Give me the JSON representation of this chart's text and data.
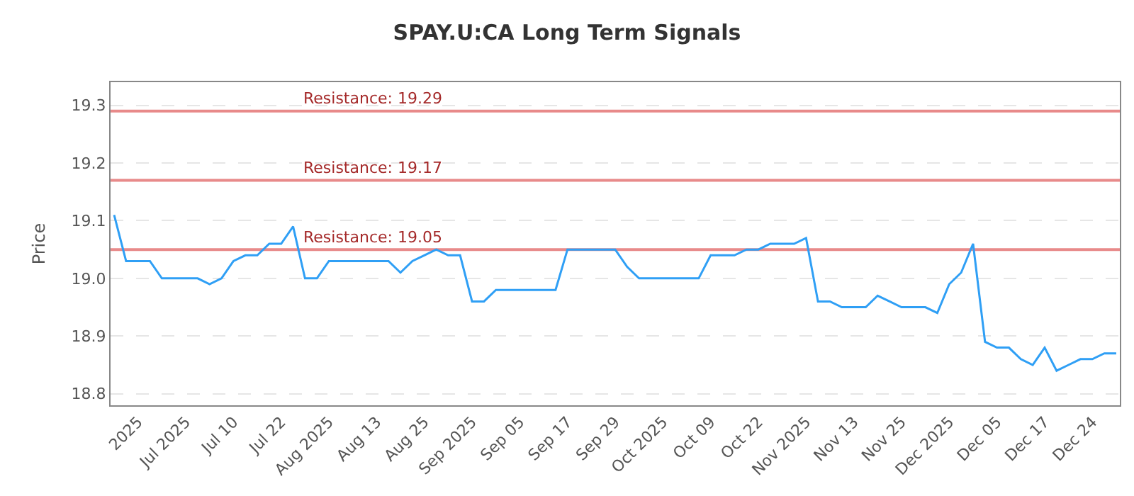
{
  "chart_data": {
    "type": "line",
    "title": "SPAY.U:CA Long Term Signals",
    "ylabel": "Price",
    "categories": [
      null,
      null,
      "2025",
      null,
      null,
      null,
      "Jul 2025",
      null,
      null,
      null,
      "Jul 10",
      null,
      null,
      null,
      "Jul 22",
      null,
      null,
      null,
      "Aug 2025",
      null,
      null,
      null,
      "Aug 13",
      null,
      null,
      null,
      "Aug 25",
      null,
      null,
      null,
      "Sep 2025",
      null,
      null,
      null,
      "Sep 05",
      null,
      null,
      null,
      "Sep 17",
      null,
      null,
      null,
      "Sep 29",
      null,
      null,
      null,
      "Oct 2025",
      null,
      null,
      null,
      "Oct 09",
      null,
      null,
      null,
      "Oct 22",
      null,
      null,
      null,
      "Nov 2025",
      null,
      null,
      null,
      "Nov 13",
      null,
      null,
      null,
      "Nov 25",
      null,
      null,
      null,
      "Dec 2025",
      null,
      null,
      null,
      "Dec 05",
      null,
      null,
      null,
      "Dec 17",
      null,
      null,
      null,
      "Dec 24",
      null,
      null
    ],
    "series": [
      {
        "color": "#2f9ff5",
        "values": [
          19.11,
          19.03,
          19.03,
          19.03,
          19.0,
          19.0,
          19.0,
          19.0,
          18.99,
          19.0,
          19.03,
          19.04,
          19.04,
          19.06,
          19.06,
          19.09,
          19.0,
          19.0,
          19.03,
          19.03,
          19.03,
          19.03,
          19.03,
          19.03,
          19.01,
          19.03,
          19.04,
          19.05,
          19.04,
          19.04,
          18.96,
          18.96,
          18.98,
          18.98,
          18.98,
          18.98,
          18.98,
          18.98,
          19.05,
          19.05,
          19.05,
          19.05,
          19.05,
          19.02,
          19.0,
          19.0,
          19.0,
          19.0,
          19.0,
          19.0,
          19.04,
          19.04,
          19.04,
          19.05,
          19.05,
          19.06,
          19.06,
          19.06,
          19.07,
          18.96,
          18.96,
          18.95,
          18.95,
          18.95,
          18.97,
          18.96,
          18.95,
          18.95,
          18.95,
          18.94,
          18.99,
          19.01,
          19.06,
          18.89,
          18.88,
          18.88,
          18.86,
          18.85,
          18.88,
          18.84,
          18.85,
          18.86,
          18.86,
          18.87,
          18.87
        ]
      }
    ],
    "ylim": [
      18.78,
      19.34
    ],
    "yticks": [
      18.8,
      18.9,
      {
        "value": 19,
        "label": "19.0"
      },
      19.1,
      19.2,
      19.3
    ],
    "grid": "y",
    "marker": "none",
    "line_style": "solid",
    "ref_lines": [
      {
        "axis": "y",
        "value": 19.29,
        "label": "Resistance: 19.29",
        "color": "#e88a8a"
      },
      {
        "axis": "y",
        "value": 19.17,
        "label": "Resistance: 19.17",
        "color": "#e88a8a"
      },
      {
        "axis": "y",
        "value": 19.05,
        "label": "Resistance: 19.05",
        "color": "#e88a8a"
      }
    ]
  }
}
